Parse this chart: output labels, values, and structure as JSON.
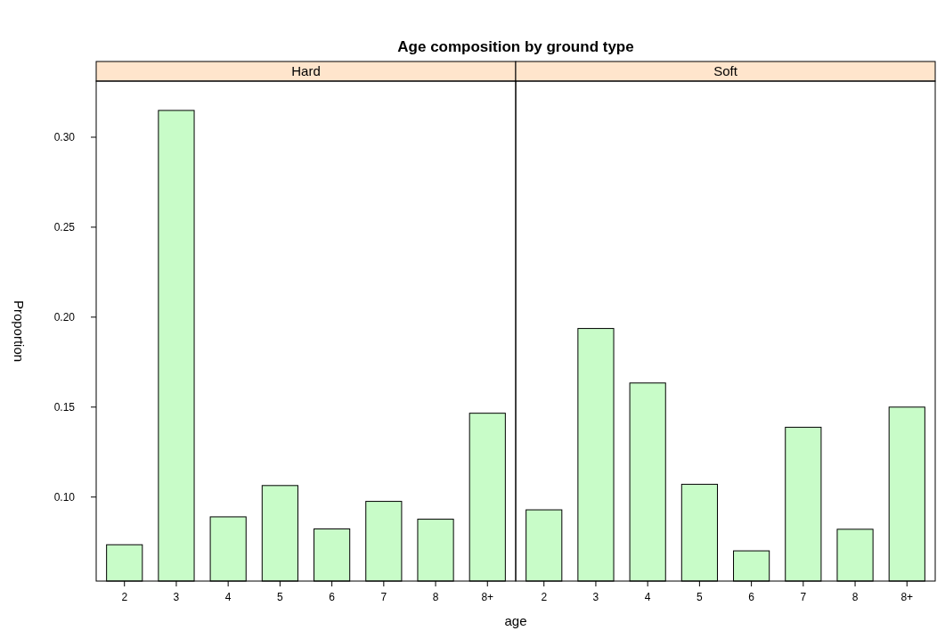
{
  "chart_data": [
    {
      "type": "bar",
      "title": "Age composition by ground type",
      "subtitle": "Hard",
      "xlabel": "age",
      "ylabel": "Proportion",
      "categories": [
        "2",
        "3",
        "4",
        "5",
        "6",
        "7",
        "8",
        "8+"
      ],
      "series": [
        {
          "color": "#c8fcc8",
          "values": [
            0.0735,
            0.3149,
            0.089,
            0.1064,
            0.0823,
            0.0976,
            0.0877,
            0.1466
          ]
        }
      ],
      "ylim": [
        0.0533,
        0.3312
      ],
      "yticks": [
        {
          "value": 0.1,
          "label": "0.10"
        },
        {
          "value": 0.15,
          "label": "0.15"
        },
        {
          "value": 0.2,
          "label": "0.20"
        },
        {
          "value": 0.25,
          "label": "0.25"
        },
        {
          "value": 0.3,
          "label": "0.30"
        }
      ]
    },
    {
      "type": "bar",
      "subtitle": "Soft",
      "categories": [
        "2",
        "3",
        "4",
        "5",
        "6",
        "7",
        "8",
        "8+"
      ],
      "series": [
        {
          "color": "#c8fcc8",
          "values": [
            0.0929,
            0.1937,
            0.1634,
            0.1071,
            0.0701,
            0.1388,
            0.0821,
            0.15
          ]
        }
      ],
      "ylim": [
        0.0533,
        0.3312
      ],
      "tick_labels": "x"
    }
  ]
}
